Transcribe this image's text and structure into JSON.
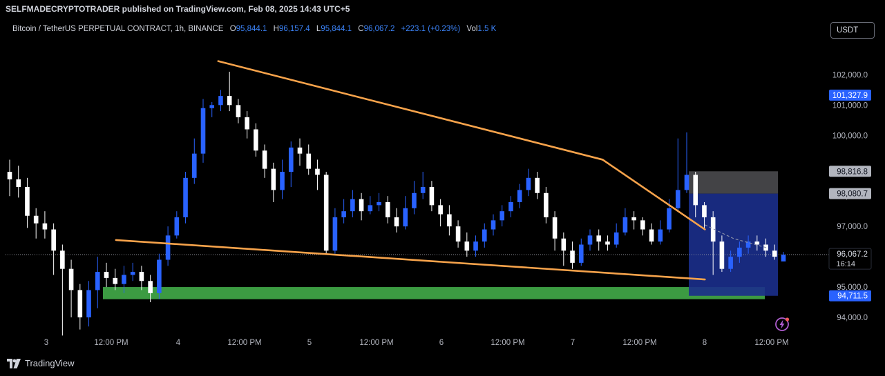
{
  "publisher_bar": "SELFMADECRYPTOTRADER published on TradingView.com, Feb 08, 2025 14:43 UTC+5",
  "legend": {
    "symbol": "Bitcoin / TetherUS PERPETUAL CONTRACT, 1h, BINANCE",
    "o_label": "O",
    "o_value": "95,844.1",
    "h_label": "H",
    "h_value": "96,157.4",
    "l_label": "L",
    "l_value": "95,844.1",
    "c_label": "C",
    "c_value": "96,067.2",
    "change": "+223.1 (+0.23%)",
    "vol_label": "Vol",
    "vol_value": "1.5 K"
  },
  "currency_button": "USDT",
  "footer_brand": "TradingView",
  "icons": {
    "brand": "tradingview-logo-icon",
    "alert": "lightning-icon"
  },
  "colors": {
    "up": "#2962ff",
    "down": "#ffffff",
    "trendline": "#f7a34b",
    "zone": "#3c9b42",
    "price_tag": "#2962ff",
    "grey_tag": "#b2b5be"
  },
  "chart_data": {
    "type": "candlestick",
    "title": "Bitcoin / TetherUS PERPETUAL CONTRACT, 1h, BINANCE",
    "ylim": [
      93500,
      103100
    ],
    "x_ticks": [
      "3",
      "12:00 PM",
      "4",
      "12:00 PM",
      "5",
      "12:00 PM",
      "6",
      "12:00 PM",
      "7",
      "12:00 PM",
      "8",
      "12:00 PM"
    ],
    "y_ticks": [
      94000,
      95000,
      97000,
      100000,
      101000,
      102000
    ],
    "y_tick_labels": [
      "94,000.0",
      "95,000.0",
      "97,000.0",
      "100,000.0",
      "101,000.0",
      "102,000.0"
    ],
    "partial_tick_label": "98,000.0",
    "price_tags": [
      {
        "value": 101327.9,
        "label": "101,327.9",
        "style": "blue"
      },
      {
        "value": 98816.8,
        "label": "98,816.8",
        "style": "grey"
      },
      {
        "value": 98080.7,
        "label": "98,080.7",
        "style": "grey"
      },
      {
        "value": 96067.2,
        "label": "96,067.2",
        "sublabel": "16:14",
        "style": "current"
      },
      {
        "value": 94711.5,
        "label": "94,711.5",
        "style": "blue"
      }
    ],
    "current_price": 96067.2,
    "candles": [
      [
        98800,
        98550,
        99200,
        98000
      ],
      [
        98550,
        98300,
        99000,
        97950
      ],
      [
        98300,
        97350,
        98600,
        96950
      ],
      [
        97350,
        97100,
        97600,
        96600
      ],
      [
        97100,
        96900,
        97500,
        96600
      ],
      [
        96900,
        96200,
        97100,
        95400
      ],
      [
        96200,
        95600,
        96400,
        93400
      ],
      [
        95600,
        94900,
        95900,
        94000
      ],
      [
        94900,
        94000,
        95100,
        93600
      ],
      [
        94000,
        94900,
        95200,
        93700
      ],
      [
        94900,
        95500,
        96000,
        94300
      ],
      [
        95500,
        95300,
        95800,
        95000
      ],
      [
        95300,
        95100,
        95600,
        94900
      ],
      [
        95100,
        95400,
        95700,
        94800
      ],
      [
        95400,
        95500,
        95800,
        95200
      ],
      [
        95500,
        95200,
        95700,
        94900
      ],
      [
        95200,
        94800,
        95400,
        94500
      ],
      [
        94800,
        95900,
        96100,
        94600
      ],
      [
        95900,
        96700,
        97000,
        95700
      ],
      [
        96700,
        97300,
        97500,
        96600
      ],
      [
        97300,
        98600,
        98800,
        97100
      ],
      [
        98600,
        99400,
        99900,
        98400
      ],
      [
        99400,
        100900,
        101200,
        99100
      ],
      [
        100900,
        101000,
        101100,
        100600
      ],
      [
        101000,
        101300,
        101500,
        100800
      ],
      [
        101300,
        101000,
        102100,
        100800
      ],
      [
        101000,
        100600,
        101200,
        100400
      ],
      [
        100600,
        100200,
        100800,
        99900
      ],
      [
        100200,
        99500,
        100400,
        99300
      ],
      [
        99500,
        98900,
        99700,
        98600
      ],
      [
        98900,
        98200,
        99100,
        97800
      ],
      [
        98200,
        98800,
        99200,
        97900
      ],
      [
        98800,
        99600,
        99800,
        98300
      ],
      [
        99600,
        99400,
        99900,
        99000
      ],
      [
        99400,
        98900,
        99700,
        98700
      ],
      [
        98900,
        98700,
        99200,
        98200
      ],
      [
        98700,
        96200,
        98800,
        96100
      ],
      [
        96200,
        97300,
        97600,
        96100
      ],
      [
        97300,
        97500,
        97900,
        97100
      ],
      [
        97500,
        97900,
        98200,
        97300
      ],
      [
        97900,
        97500,
        98100,
        97200
      ],
      [
        97500,
        97700,
        98000,
        97400
      ],
      [
        97700,
        97800,
        98100,
        97500
      ],
      [
        97800,
        97300,
        98000,
        97100
      ],
      [
        97300,
        97000,
        97600,
        96800
      ],
      [
        97000,
        97600,
        98000,
        96900
      ],
      [
        97600,
        98100,
        98500,
        97400
      ],
      [
        98100,
        98300,
        98800,
        97900
      ],
      [
        98300,
        97700,
        98500,
        97500
      ],
      [
        97700,
        97400,
        97900,
        97000
      ],
      [
        97400,
        97000,
        97700,
        96700
      ],
      [
        97000,
        96500,
        97200,
        96300
      ],
      [
        96500,
        96200,
        96800,
        96000
      ],
      [
        96200,
        96500,
        96700,
        96000
      ],
      [
        96500,
        96900,
        97100,
        96300
      ],
      [
        96900,
        97200,
        97400,
        96700
      ],
      [
        97200,
        97500,
        97700,
        97000
      ],
      [
        97500,
        97800,
        98000,
        97300
      ],
      [
        97800,
        98200,
        98400,
        97600
      ],
      [
        98200,
        98600,
        98900,
        98000
      ],
      [
        98600,
        98100,
        98800,
        97900
      ],
      [
        98100,
        97300,
        98300,
        97100
      ],
      [
        97300,
        96600,
        97500,
        96200
      ],
      [
        96600,
        96200,
        96800,
        95700
      ],
      [
        96200,
        95800,
        96500,
        95600
      ],
      [
        95800,
        96400,
        96600,
        95700
      ],
      [
        96400,
        96700,
        96900,
        96200
      ],
      [
        96700,
        96500,
        96900,
        96200
      ],
      [
        96500,
        96400,
        96700,
        96200
      ],
      [
        96400,
        96800,
        97100,
        96300
      ],
      [
        96800,
        97300,
        97600,
        96700
      ],
      [
        97300,
        97200,
        97500,
        96900
      ],
      [
        97200,
        96900,
        97300,
        96700
      ],
      [
        96900,
        96500,
        97100,
        96400
      ],
      [
        96500,
        96900,
        97200,
        96400
      ],
      [
        96900,
        97600,
        97900,
        96800
      ],
      [
        97600,
        98200,
        99900,
        97500
      ],
      [
        98200,
        98700,
        100100,
        98100
      ],
      [
        98700,
        97700,
        98800,
        97300
      ],
      [
        97700,
        97300,
        97800,
        96900
      ],
      [
        97300,
        96500,
        97500,
        95400
      ],
      [
        96500,
        95600,
        96700,
        95500
      ],
      [
        95600,
        96000,
        96200,
        95500
      ],
      [
        96000,
        96300,
        96500,
        95800
      ],
      [
        96300,
        96500,
        96700,
        96100
      ],
      [
        96500,
        96400,
        96700,
        96200
      ],
      [
        96400,
        96200,
        96600,
        96000
      ],
      [
        96200,
        96000,
        96400,
        95900
      ],
      [
        95844.1,
        96067.2,
        96157.4,
        95844.1
      ]
    ],
    "trendlines": [
      {
        "from": [
          0.26,
          102450
        ],
        "to": [
          0.73,
          99200
        ],
        "color": "#f7a34b"
      },
      {
        "from": [
          0.73,
          99200
        ],
        "to": [
          0.855,
          96900
        ],
        "color": "#f7a34b",
        "note": "extension"
      },
      {
        "from": [
          0.135,
          96550
        ],
        "to": [
          0.855,
          95250
        ],
        "color": "#f7a34b"
      }
    ],
    "zones": [
      {
        "kind": "support",
        "y_range": [
          94600,
          95000
        ],
        "color": "#3c9b42"
      },
      {
        "kind": "short_position",
        "entry": 98080.7,
        "stop": 98816.8,
        "target": 94711.5
      }
    ]
  }
}
